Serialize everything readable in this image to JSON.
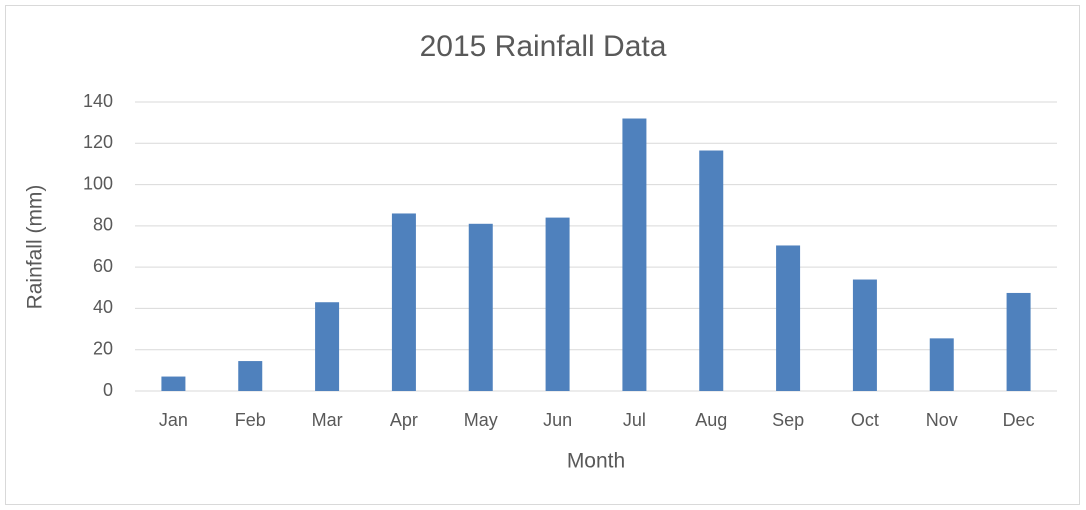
{
  "chart_data": {
    "type": "bar",
    "title": "2015 Rainfall Data",
    "x_label": "Month",
    "y_label": "Rainfall (mm)",
    "categories": [
      "Jan",
      "Feb",
      "Mar",
      "Apr",
      "May",
      "Jun",
      "Jul",
      "Aug",
      "Sep",
      "Oct",
      "Nov",
      "Dec"
    ],
    "values": [
      7,
      14.5,
      43,
      86,
      81,
      84,
      132,
      116.5,
      70.5,
      54,
      25.5,
      47.5
    ],
    "color": "#4f81bd",
    "ylim": [
      0,
      140
    ],
    "yticks": [
      0,
      20,
      40,
      60,
      80,
      100,
      120,
      140
    ],
    "grid": true
  }
}
